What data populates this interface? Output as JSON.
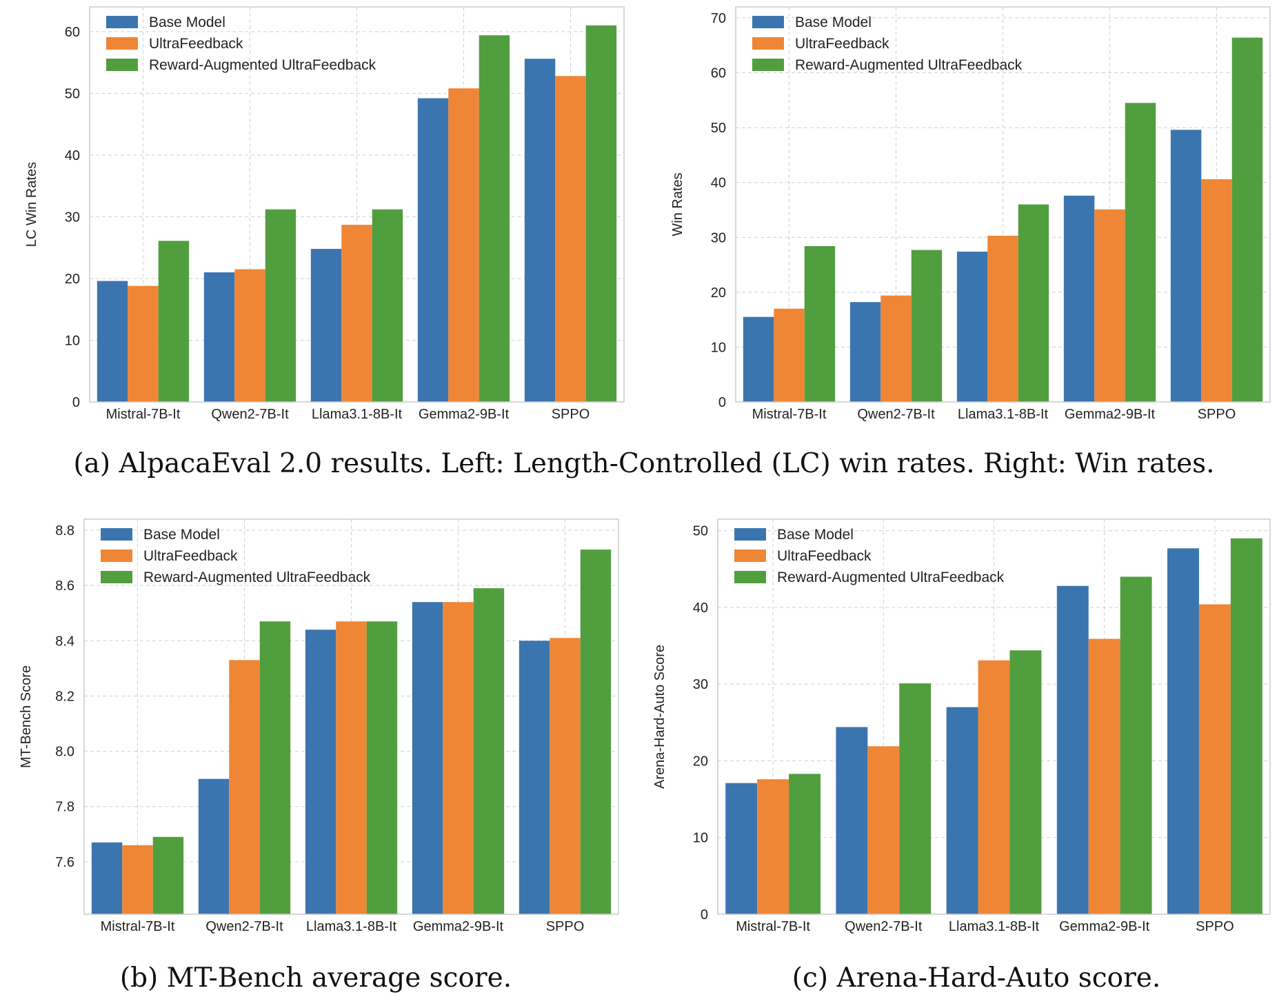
{
  "colors": {
    "base": "#3b75af",
    "ultrafeedback": "#ef8636",
    "reward_augmented": "#519e3e",
    "grid": "#d0d0d0",
    "axes_edge": "#cccccc",
    "text": "#222222"
  },
  "captions": {
    "a": "(a) AlpacaEval 2.0 results. Left: Length-Controlled (LC) win rates. Right: Win rates.",
    "b": "(b) MT-Bench average score.",
    "c": "(c) Arena-Hard-Auto score."
  },
  "chart_data": [
    {
      "id": "lc-win-rates",
      "type": "bar",
      "title": "",
      "xlabel": "",
      "ylabel": "LC Win Rates",
      "categories": [
        "Mistral-7B-It",
        "Qwen2-7B-It",
        "Llama3.1-8B-It",
        "Gemma2-9B-It",
        "SPPO"
      ],
      "series": [
        {
          "name": "Base Model",
          "values": [
            19.6,
            21.0,
            24.8,
            49.2,
            55.6
          ]
        },
        {
          "name": "UltraFeedback",
          "values": [
            18.8,
            21.5,
            28.7,
            50.8,
            52.8
          ]
        },
        {
          "name": "Reward-Augmented UltraFeedback",
          "values": [
            26.1,
            31.2,
            31.2,
            59.4,
            61.0
          ]
        }
      ],
      "ylim": [
        0,
        64
      ],
      "yticks": [
        0,
        10,
        20,
        30,
        40,
        50,
        60
      ],
      "grid": true,
      "legend": "top-left"
    },
    {
      "id": "win-rates",
      "type": "bar",
      "title": "",
      "xlabel": "",
      "ylabel": "Win Rates",
      "categories": [
        "Mistral-7B-It",
        "Qwen2-7B-It",
        "Llama3.1-8B-It",
        "Gemma2-9B-It",
        "SPPO"
      ],
      "series": [
        {
          "name": "Base Model",
          "values": [
            15.5,
            18.2,
            27.4,
            37.6,
            49.6
          ]
        },
        {
          "name": "UltraFeedback",
          "values": [
            17.0,
            19.4,
            30.3,
            35.1,
            40.6
          ]
        },
        {
          "name": "Reward-Augmented UltraFeedback",
          "values": [
            28.4,
            27.7,
            36.0,
            54.5,
            66.4
          ]
        }
      ],
      "ylim": [
        0,
        72
      ],
      "yticks": [
        0,
        10,
        20,
        30,
        40,
        50,
        60,
        70
      ],
      "grid": true,
      "legend": "top-left"
    },
    {
      "id": "mt-bench",
      "type": "bar",
      "title": "",
      "xlabel": "",
      "ylabel": "MT-Bench Score",
      "categories": [
        "Mistral-7B-It",
        "Qwen2-7B-It",
        "Llama3.1-8B-It",
        "Gemma2-9B-It",
        "SPPO"
      ],
      "series": [
        {
          "name": "Base Model",
          "values": [
            7.67,
            7.9,
            8.44,
            8.54,
            8.4
          ]
        },
        {
          "name": "UltraFeedback",
          "values": [
            7.66,
            8.33,
            8.47,
            8.54,
            8.41
          ]
        },
        {
          "name": "Reward-Augmented UltraFeedback",
          "values": [
            7.69,
            8.47,
            8.47,
            8.59,
            8.73
          ]
        }
      ],
      "ylim": [
        7.41,
        8.84
      ],
      "yticks": [
        7.6,
        7.8,
        8.0,
        8.2,
        8.4,
        8.6,
        8.8
      ],
      "ytick_decimals": 1,
      "grid": true,
      "legend": "top-left"
    },
    {
      "id": "arena-hard",
      "type": "bar",
      "title": "",
      "xlabel": "",
      "ylabel": "Arena-Hard-Auto Score",
      "categories": [
        "Mistral-7B-It",
        "Qwen2-7B-It",
        "Llama3.1-8B-It",
        "Gemma2-9B-It",
        "SPPO"
      ],
      "series": [
        {
          "name": "Base Model",
          "values": [
            17.1,
            24.4,
            27.0,
            42.8,
            47.7
          ]
        },
        {
          "name": "UltraFeedback",
          "values": [
            17.6,
            21.9,
            33.1,
            35.9,
            40.4
          ]
        },
        {
          "name": "Reward-Augmented UltraFeedback",
          "values": [
            18.3,
            30.1,
            34.4,
            44.0,
            49.0
          ]
        }
      ],
      "ylim": [
        0,
        51.5
      ],
      "yticks": [
        0,
        10,
        20,
        30,
        40,
        50
      ],
      "grid": true,
      "legend": "top-left"
    }
  ]
}
